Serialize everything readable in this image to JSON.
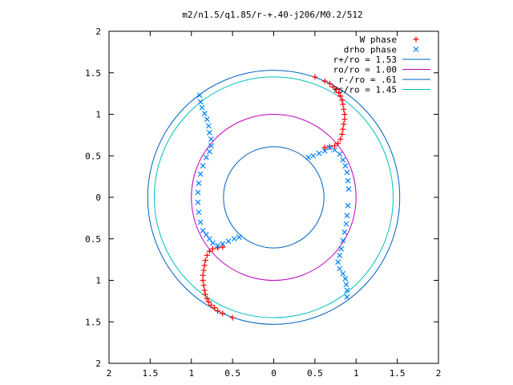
{
  "chart_data": {
    "type": "scatter",
    "title": "m2/n1.5/q1.85/r-+.40-j206/M0.2/512",
    "xlabel": "",
    "ylabel": "",
    "xlim": [
      -2,
      2
    ],
    "ylim": [
      -2,
      2
    ],
    "x_ticks": [
      -2,
      -1.5,
      -1,
      -0.5,
      0,
      0.5,
      1,
      1.5,
      2
    ],
    "y_ticks": [
      -2,
      -1.5,
      -1,
      -0.5,
      0,
      0.5,
      1,
      1.5,
      2
    ],
    "x_tick_labels": [
      "2",
      "1.5",
      "1",
      "0.5",
      "0",
      "0.5",
      "1",
      "1.5",
      "2"
    ],
    "y_tick_labels": [
      "2",
      "1.5",
      "1",
      "0.5",
      "0",
      "0.5",
      "1",
      "1.5",
      "2"
    ],
    "grid": false,
    "legend_position": "top-right",
    "series": [
      {
        "name": "W phase",
        "marker": "plus",
        "color": "#ff0000",
        "points": [
          [
            0.5,
            1.45
          ],
          [
            0.62,
            1.4
          ],
          [
            0.68,
            1.37
          ],
          [
            0.72,
            1.33
          ],
          [
            0.76,
            1.3
          ],
          [
            0.79,
            1.26
          ],
          [
            0.81,
            1.22
          ],
          [
            0.83,
            1.17
          ],
          [
            0.84,
            1.12
          ],
          [
            0.85,
            1.06
          ],
          [
            0.86,
            1.0
          ],
          [
            0.86,
            0.94
          ],
          [
            0.85,
            0.88
          ],
          [
            0.84,
            0.82
          ],
          [
            0.83,
            0.76
          ],
          [
            0.81,
            0.7
          ],
          [
            0.78,
            0.65
          ],
          [
            0.74,
            0.62
          ],
          [
            0.68,
            0.61
          ],
          [
            0.62,
            0.6
          ],
          [
            -0.5,
            -1.45
          ],
          [
            -0.62,
            -1.4
          ],
          [
            -0.68,
            -1.37
          ],
          [
            -0.72,
            -1.33
          ],
          [
            -0.76,
            -1.3
          ],
          [
            -0.79,
            -1.26
          ],
          [
            -0.81,
            -1.22
          ],
          [
            -0.83,
            -1.17
          ],
          [
            -0.84,
            -1.12
          ],
          [
            -0.85,
            -1.06
          ],
          [
            -0.86,
            -1.0
          ],
          [
            -0.86,
            -0.94
          ],
          [
            -0.85,
            -0.88
          ],
          [
            -0.84,
            -0.82
          ],
          [
            -0.83,
            -0.76
          ],
          [
            -0.81,
            -0.7
          ],
          [
            -0.78,
            -0.65
          ],
          [
            -0.74,
            -0.62
          ],
          [
            -0.68,
            -0.61
          ],
          [
            -0.62,
            -0.6
          ]
        ]
      },
      {
        "name": "drho phase",
        "marker": "cross",
        "color": "#0080ff",
        "points": [
          [
            0.42,
            0.48
          ],
          [
            0.48,
            0.5
          ],
          [
            0.55,
            0.53
          ],
          [
            0.62,
            0.56
          ],
          [
            0.68,
            0.6
          ],
          [
            0.74,
            0.57
          ],
          [
            0.8,
            0.52
          ],
          [
            0.84,
            0.45
          ],
          [
            0.87,
            0.38
          ],
          [
            0.89,
            0.3
          ],
          [
            0.9,
            0.2
          ],
          [
            0.91,
            0.1
          ],
          [
            0.9,
            -0.1
          ],
          [
            0.89,
            -0.22
          ],
          [
            0.88,
            -0.32
          ],
          [
            0.86,
            -0.42
          ],
          [
            0.84,
            -0.52
          ],
          [
            0.82,
            -0.62
          ],
          [
            0.8,
            -0.7
          ],
          [
            0.78,
            -0.78
          ],
          [
            0.8,
            -0.86
          ],
          [
            0.84,
            -0.92
          ],
          [
            0.87,
            -0.98
          ],
          [
            0.88,
            -1.05
          ],
          [
            0.89,
            -1.12
          ],
          [
            0.89,
            -1.2
          ],
          [
            -0.42,
            -0.48
          ],
          [
            -0.48,
            -0.5
          ],
          [
            -0.55,
            -0.53
          ],
          [
            -0.62,
            -0.56
          ],
          [
            -0.68,
            -0.58
          ],
          [
            -0.74,
            -0.55
          ],
          [
            -0.78,
            -0.5
          ],
          [
            -0.82,
            -0.45
          ],
          [
            -0.9,
            1.23
          ],
          [
            -0.89,
            1.15
          ],
          [
            -0.87,
            1.08
          ],
          [
            -0.84,
            1.01
          ],
          [
            -0.81,
            0.94
          ],
          [
            -0.79,
            0.86
          ],
          [
            -0.78,
            0.78
          ],
          [
            -0.76,
            0.7
          ],
          [
            -0.76,
            0.62
          ],
          [
            -0.78,
            0.55
          ],
          [
            -0.82,
            0.48
          ],
          [
            -0.86,
            0.38
          ],
          [
            -0.89,
            0.28
          ],
          [
            -0.91,
            0.17
          ],
          [
            -0.92,
            0.06
          ],
          [
            -0.92,
            -0.06
          ],
          [
            -0.91,
            -0.18
          ],
          [
            -0.89,
            -0.3
          ],
          [
            -0.86,
            -0.4
          ]
        ]
      }
    ],
    "circles": [
      {
        "name": "r+/ro = 1.53",
        "radius": 1.53,
        "color": "#0060c0"
      },
      {
        "name": "ro/ro = 1.00",
        "radius": 1.0,
        "color": "#c000c0"
      },
      {
        "name": "r-/ro = .61",
        "radius": 0.61,
        "color": "#0060c0"
      },
      {
        "name": "rs/ro = 1.45",
        "radius": 1.45,
        "color": "#00c0c0"
      }
    ]
  }
}
